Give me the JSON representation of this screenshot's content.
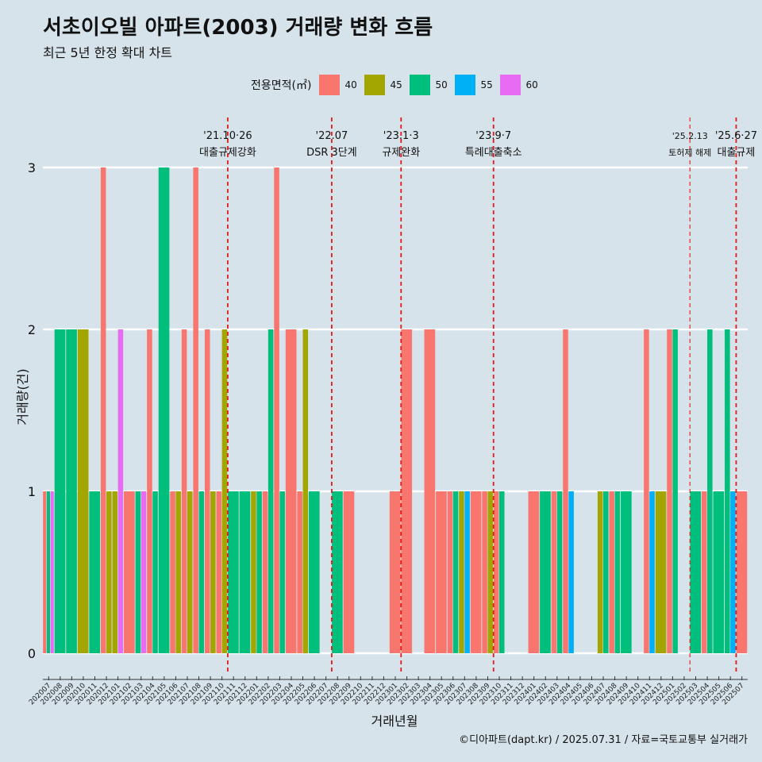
{
  "title": "서초이오빌 아파트(2003) 거래량 변화 흐름",
  "subtitle": "최근 5년 한정 확대 차트",
  "caption": "©디아파트(dapt.kr) / 2025.07.31 / 자료=국토교통부 실거래가",
  "legend": {
    "title": "전용면적(㎡)",
    "items": [
      {
        "label": "40",
        "color": "#F8766D"
      },
      {
        "label": "45",
        "color": "#A3A500"
      },
      {
        "label": "50",
        "color": "#00BF7D"
      },
      {
        "label": "55",
        "color": "#00B0F6"
      },
      {
        "label": "60",
        "color": "#E76BF3"
      }
    ]
  },
  "chart_data": {
    "type": "bar",
    "xlabel": "거래년월",
    "ylabel": "거래량(건)",
    "ylim": [
      0,
      3
    ],
    "yticks": [
      0,
      1,
      2,
      3
    ],
    "grid": true,
    "legend_position": "top",
    "categories": [
      "202007",
      "202008",
      "202009",
      "202010",
      "202011",
      "202012",
      "202101",
      "202102",
      "202103",
      "202104",
      "202105",
      "202106",
      "202107",
      "202108",
      "202109",
      "202110",
      "202111",
      "202112",
      "202201",
      "202202",
      "202203",
      "202204",
      "202205",
      "202206",
      "202207",
      "202208",
      "202209",
      "202210",
      "202211",
      "202212",
      "202301",
      "202302",
      "202303",
      "202304",
      "202305",
      "202306",
      "202307",
      "202308",
      "202309",
      "202310",
      "202311",
      "202312",
      "202401",
      "202402",
      "202403",
      "202404",
      "202405",
      "202406",
      "202407",
      "202408",
      "202409",
      "202410",
      "202411",
      "202412",
      "202501",
      "202502",
      "202503",
      "202504",
      "202505",
      "202506",
      "202507"
    ],
    "deals": [
      [
        {
          "a": "40",
          "v": 1
        },
        {
          "a": "50",
          "v": 1
        },
        {
          "a": "60",
          "v": 1
        }
      ],
      [
        {
          "a": "50",
          "v": 2
        }
      ],
      [
        {
          "a": "50",
          "v": 2
        }
      ],
      [
        {
          "a": "45",
          "v": 2
        }
      ],
      [
        {
          "a": "50",
          "v": 1
        }
      ],
      [
        {
          "a": "40",
          "v": 3
        },
        {
          "a": "45",
          "v": 1
        }
      ],
      [
        {
          "a": "45",
          "v": 1
        },
        {
          "a": "60",
          "v": 2
        }
      ],
      [
        {
          "a": "40",
          "v": 1
        }
      ],
      [
        {
          "a": "50",
          "v": 1
        },
        {
          "a": "60",
          "v": 1
        }
      ],
      [
        {
          "a": "40",
          "v": 2
        },
        {
          "a": "50",
          "v": 1
        }
      ],
      [
        {
          "a": "50",
          "v": 3
        }
      ],
      [
        {
          "a": "40",
          "v": 1
        },
        {
          "a": "45",
          "v": 1
        }
      ],
      [
        {
          "a": "40",
          "v": 2
        },
        {
          "a": "45",
          "v": 1
        }
      ],
      [
        {
          "a": "40",
          "v": 3
        },
        {
          "a": "50",
          "v": 1
        }
      ],
      [
        {
          "a": "40",
          "v": 2
        },
        {
          "a": "45",
          "v": 1
        }
      ],
      [
        {
          "a": "40",
          "v": 1
        },
        {
          "a": "45",
          "v": 2
        }
      ],
      [
        {
          "a": "50",
          "v": 1
        }
      ],
      [
        {
          "a": "50",
          "v": 1
        }
      ],
      [
        {
          "a": "45",
          "v": 1
        },
        {
          "a": "50",
          "v": 1
        }
      ],
      [
        {
          "a": "40",
          "v": 1
        },
        {
          "a": "50",
          "v": 2
        }
      ],
      [
        {
          "a": "40",
          "v": 3
        },
        {
          "a": "50",
          "v": 1
        }
      ],
      [
        {
          "a": "40",
          "v": 2
        }
      ],
      [
        {
          "a": "40",
          "v": 1
        },
        {
          "a": "45",
          "v": 2
        }
      ],
      [
        {
          "a": "50",
          "v": 1
        }
      ],
      [],
      [
        {
          "a": "50",
          "v": 1
        }
      ],
      [
        {
          "a": "40",
          "v": 1
        }
      ],
      [],
      [],
      [],
      [
        {
          "a": "40",
          "v": 1
        }
      ],
      [
        {
          "a": "40",
          "v": 2
        }
      ],
      [],
      [
        {
          "a": "40",
          "v": 2
        }
      ],
      [
        {
          "a": "40",
          "v": 1
        }
      ],
      [
        {
          "a": "40",
          "v": 1
        },
        {
          "a": "50",
          "v": 1
        }
      ],
      [
        {
          "a": "45",
          "v": 1
        },
        {
          "a": "55",
          "v": 1
        }
      ],
      [
        {
          "a": "40",
          "v": 1
        }
      ],
      [
        {
          "a": "40",
          "v": 1
        },
        {
          "a": "45",
          "v": 1
        }
      ],
      [
        {
          "a": "40",
          "v": 1
        },
        {
          "a": "50",
          "v": 1
        }
      ],
      [],
      [],
      [
        {
          "a": "40",
          "v": 1
        }
      ],
      [
        {
          "a": "50",
          "v": 1
        }
      ],
      [
        {
          "a": "40",
          "v": 1
        },
        {
          "a": "50",
          "v": 1
        }
      ],
      [
        {
          "a": "40",
          "v": 2
        },
        {
          "a": "55",
          "v": 1
        }
      ],
      [],
      [],
      [
        {
          "a": "45",
          "v": 1
        },
        {
          "a": "50",
          "v": 1
        }
      ],
      [
        {
          "a": "40",
          "v": 1
        },
        {
          "a": "50",
          "v": 1
        }
      ],
      [
        {
          "a": "50",
          "v": 1
        }
      ],
      [],
      [
        {
          "a": "40",
          "v": 2
        },
        {
          "a": "55",
          "v": 1
        }
      ],
      [
        {
          "a": "45",
          "v": 1
        }
      ],
      [
        {
          "a": "40",
          "v": 2
        },
        {
          "a": "50",
          "v": 2
        }
      ],
      [],
      [
        {
          "a": "50",
          "v": 1
        }
      ],
      [
        {
          "a": "40",
          "v": 1
        },
        {
          "a": "50",
          "v": 2
        }
      ],
      [
        {
          "a": "50",
          "v": 1
        }
      ],
      [
        {
          "a": "50",
          "v": 2
        },
        {
          "a": "55",
          "v": 1
        }
      ],
      [
        {
          "a": "40",
          "v": 1
        }
      ]
    ],
    "events": [
      {
        "index": 15.5,
        "date": "'21.10·26",
        "label": "대출규제강화",
        "bold": true
      },
      {
        "index": 24.5,
        "date": "'22.07",
        "label": "DSR 3단계",
        "bold": true
      },
      {
        "index": 30.5,
        "date": "'23.1·3",
        "label": "규제완화",
        "bold": true
      },
      {
        "index": 38.5,
        "date": "'23.9·7",
        "label": "특례대출축소",
        "bold": true
      },
      {
        "index": 55.5,
        "date": "'25.2.13",
        "label": "토허제 해제",
        "bold": false
      },
      {
        "index": 59.5,
        "date": "'25.6·27",
        "label": "대출규제",
        "bold": true
      }
    ]
  }
}
